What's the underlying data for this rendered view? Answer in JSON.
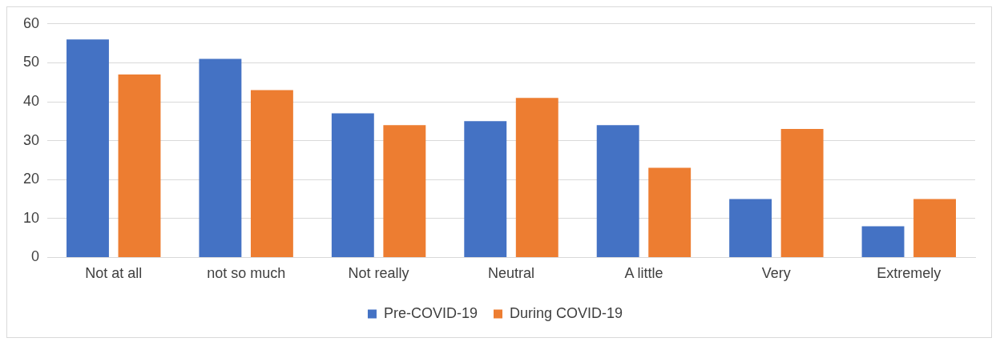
{
  "chart_data": {
    "type": "bar",
    "categories": [
      "Not at all",
      "not so much",
      "Not really",
      "Neutral",
      "A little",
      "Very",
      "Extremely"
    ],
    "series": [
      {
        "name": "Pre-COVID-19",
        "color": "#4472c4",
        "values": [
          56,
          51,
          37,
          35,
          34,
          15,
          8
        ]
      },
      {
        "name": "During COVID-19",
        "color": "#ed7d31",
        "values": [
          47,
          43,
          34,
          41,
          23,
          33,
          15
        ]
      }
    ],
    "ylim": [
      0,
      60
    ],
    "yticks": [
      0,
      10,
      20,
      30,
      40,
      50,
      60
    ],
    "grid": "y",
    "legend": "bottom"
  }
}
